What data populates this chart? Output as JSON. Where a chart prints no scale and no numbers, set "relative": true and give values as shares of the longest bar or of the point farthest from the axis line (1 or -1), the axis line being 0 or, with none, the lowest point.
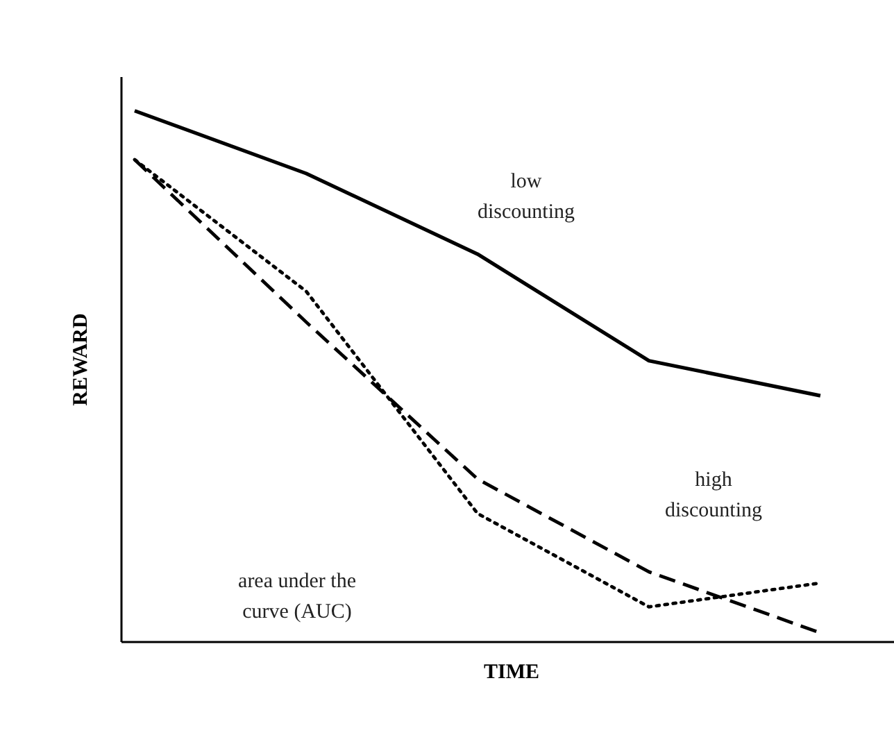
{
  "chart_data": {
    "type": "line",
    "relative": true,
    "xlabel": "TIME",
    "ylabel": "REWARD",
    "categories": [
      null,
      null,
      null,
      null,
      null
    ],
    "series": [
      {
        "color": "#000000",
        "line_style": "solid",
        "values": [
          1,
          0.882,
          0.73,
          0.529,
          0.463
        ]
      },
      {
        "color": "#000000",
        "line_style": "dashed",
        "values": [
          0.908,
          0.602,
          0.306,
          0.131,
          0.016
        ]
      },
      {
        "color": "#000000",
        "line_style": "dotted",
        "values": [
          0.908,
          0.66,
          0.241,
          0.065,
          0.11
        ]
      }
    ],
    "annotations": [
      "low discounting",
      "high discounting",
      "area under the curve (AUC)"
    ],
    "marker": "none"
  }
}
